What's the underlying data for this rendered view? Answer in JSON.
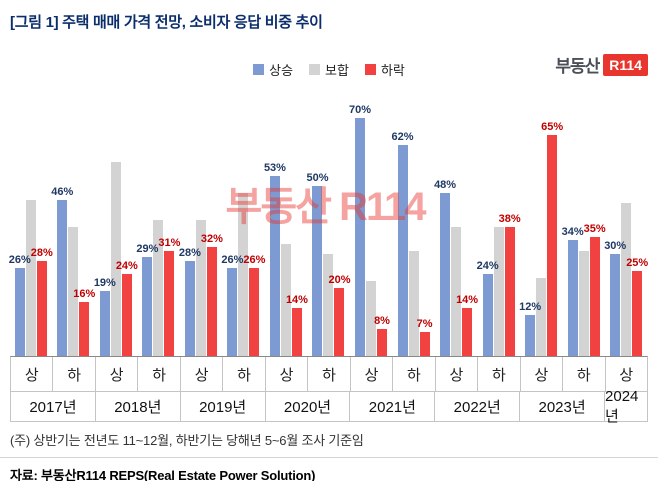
{
  "title": "[그림 1] 주택 매매 가격 전망, 소비자 응답 비중 추이",
  "logo": {
    "text": "부동산",
    "badge": "R114"
  },
  "watermark": "부동산 R114",
  "legend": {
    "items": [
      {
        "label": "상승",
        "key": "rise"
      },
      {
        "label": "보합",
        "key": "flat"
      },
      {
        "label": "하락",
        "key": "fall"
      }
    ]
  },
  "colors": {
    "title": "#0b2e6b",
    "rise_bar": "#7d9bd2",
    "flat_bar": "#d3d3d3",
    "fall_bar": "#f24141",
    "rise_label": "#1f3864",
    "fall_label": "#c00000",
    "logo_red": "#e8362e"
  },
  "footnote": "(주) 상반기는 전년도 11~12월, 하반기는 당해년 5~6월 조사 기준임",
  "source": "자료: 부동산R114 REPS(Real Estate Power Solution)",
  "chart_data": {
    "type": "bar",
    "title": "주택 매매 가격 전망, 소비자 응답 비중 추이",
    "value_suffix": "%",
    "ylim": [
      0,
      80
    ],
    "grid": false,
    "legend_position": "top-center",
    "categories": [
      "2017 상",
      "2017 하",
      "2018 상",
      "2018 하",
      "2019 상",
      "2019 하",
      "2020 상",
      "2020 하",
      "2021 상",
      "2021 하",
      "2022 상",
      "2022 하",
      "2023 상",
      "2023 하",
      "2024 상"
    ],
    "halves": [
      "상",
      "하",
      "상",
      "하",
      "상",
      "하",
      "상",
      "하",
      "상",
      "하",
      "상",
      "하",
      "상",
      "하",
      "상"
    ],
    "years": [
      {
        "label": "2017년",
        "spans": 2
      },
      {
        "label": "2018년",
        "spans": 2
      },
      {
        "label": "2019년",
        "spans": 2
      },
      {
        "label": "2020년",
        "spans": 2
      },
      {
        "label": "2021년",
        "spans": 2
      },
      {
        "label": "2022년",
        "spans": 2
      },
      {
        "label": "2023년",
        "spans": 2
      },
      {
        "label": "2024년",
        "spans": 1
      }
    ],
    "series": [
      {
        "name": "상승",
        "key": "rise",
        "labeled": true,
        "values": [
          26,
          46,
          19,
          29,
          28,
          26,
          53,
          50,
          70,
          62,
          48,
          24,
          12,
          34,
          30
        ]
      },
      {
        "name": "보합",
        "key": "flat",
        "labeled": false,
        "values": [
          46,
          38,
          57,
          40,
          40,
          48,
          33,
          30,
          22,
          31,
          38,
          38,
          23,
          31,
          45
        ]
      },
      {
        "name": "하락",
        "key": "fall",
        "labeled": true,
        "values": [
          28,
          16,
          24,
          31,
          32,
          26,
          14,
          20,
          8,
          7,
          14,
          38,
          65,
          35,
          25
        ]
      }
    ]
  }
}
